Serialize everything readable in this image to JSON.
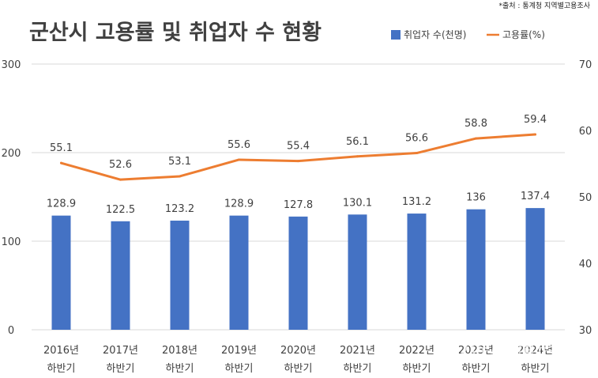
{
  "chart_data": {
    "type": "bar",
    "title": "군산시 고용률 및 취업자 수 현황",
    "source": "*출처 : 통계청 지역별고용조사",
    "categories": [
      [
        "2016년",
        "하반기"
      ],
      [
        "2017년",
        "하반기"
      ],
      [
        "2018년",
        "하반기"
      ],
      [
        "2019년",
        "하반기"
      ],
      [
        "2020년",
        "하반기"
      ],
      [
        "2021년",
        "하반기"
      ],
      [
        "2022년",
        "하반기"
      ],
      [
        "2023년",
        "하반기"
      ],
      [
        "2024년",
        "하반기"
      ]
    ],
    "series": [
      {
        "name": "취업자 수(천명)",
        "type": "bar",
        "axis": "left",
        "color": "#4472c4",
        "values": [
          128.9,
          122.5,
          123.2,
          128.9,
          127.8,
          130.1,
          131.2,
          136,
          137.4
        ],
        "labels": [
          "128.9",
          "122.5",
          "123.2",
          "128.9",
          "127.8",
          "130.1",
          "131.2",
          "136",
          "137.4"
        ]
      },
      {
        "name": "고용률(%)",
        "type": "line",
        "axis": "right",
        "color": "#ed7d31",
        "values": [
          55.1,
          52.6,
          53.1,
          55.6,
          55.4,
          56.1,
          56.6,
          58.8,
          59.4
        ],
        "labels": [
          "55.1",
          "52.6",
          "53.1",
          "55.6",
          "55.4",
          "56.1",
          "56.6",
          "58.8",
          "59.4"
        ]
      }
    ],
    "y_left": {
      "range": [
        0,
        300
      ],
      "ticks": [
        0,
        100,
        200,
        300
      ],
      "tick_labels": [
        "0",
        "100",
        "200",
        "300"
      ]
    },
    "y_right": {
      "range": [
        30,
        70
      ],
      "ticks": [
        30,
        40,
        50,
        60,
        70
      ],
      "tick_labels": [
        "30",
        "40",
        "50",
        "60",
        "70"
      ]
    },
    "grid": true,
    "legend": "top-right"
  },
  "watermark": {
    "text": "(주)한국탑뉴스",
    "sub": "www.koreatopnews.net"
  }
}
